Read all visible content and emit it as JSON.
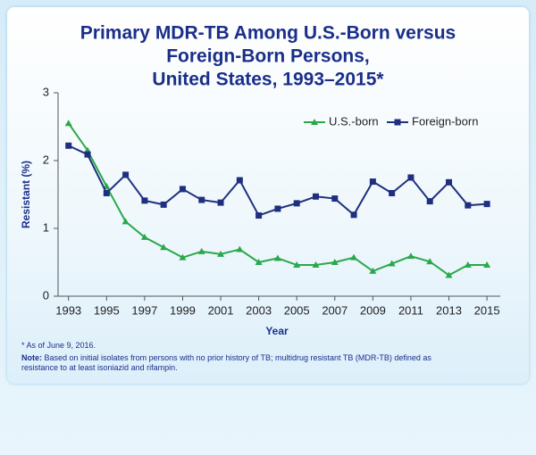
{
  "chart_data": {
    "type": "line",
    "title_lines": [
      "Primary MDR-TB Among U.S.-Born versus",
      "Foreign-Born Persons,",
      "United States, 1993–2015*"
    ],
    "x_label": "Year",
    "y_label": "Resistant (%)",
    "x": [
      1993,
      1994,
      1995,
      1996,
      1997,
      1998,
      1999,
      2000,
      2001,
      2002,
      2003,
      2004,
      2005,
      2006,
      2007,
      2008,
      2009,
      2010,
      2011,
      2012,
      2013,
      2014,
      2015
    ],
    "series": [
      {
        "name": "U.S.-born",
        "color": "#2aa84a",
        "marker": "triangle",
        "values": [
          2.55,
          2.15,
          1.62,
          1.1,
          0.87,
          0.72,
          0.57,
          0.66,
          0.62,
          0.69,
          0.5,
          0.56,
          0.46,
          0.46,
          0.5,
          0.57,
          0.37,
          0.48,
          0.59,
          0.51,
          0.31,
          0.46,
          0.46
        ]
      },
      {
        "name": "Foreign-born",
        "color": "#1f2f7f",
        "marker": "square",
        "values": [
          2.22,
          2.09,
          1.52,
          1.79,
          1.41,
          1.35,
          1.58,
          1.42,
          1.38,
          1.71,
          1.19,
          1.29,
          1.37,
          1.47,
          1.44,
          1.2,
          1.69,
          1.52,
          1.75,
          1.4,
          1.68,
          1.34,
          1.36
        ]
      }
    ],
    "xlim": [
      1992.45,
      2015.7
    ],
    "xticks": [
      1993,
      1995,
      1997,
      1999,
      2001,
      2003,
      2005,
      2007,
      2009,
      2011,
      2013,
      2015
    ],
    "ylim": [
      0,
      3
    ],
    "yticks": [
      0,
      1,
      2,
      3
    ],
    "grid": false,
    "legend": "top-right",
    "footnote": "* As of June 9, 2016.",
    "note_label": "Note:",
    "note": "Based on initial isolates from persons with no prior history of TB; multidrug resistant TB (MDR-TB) defined as resistance to at least isoniazid and rifampin."
  }
}
